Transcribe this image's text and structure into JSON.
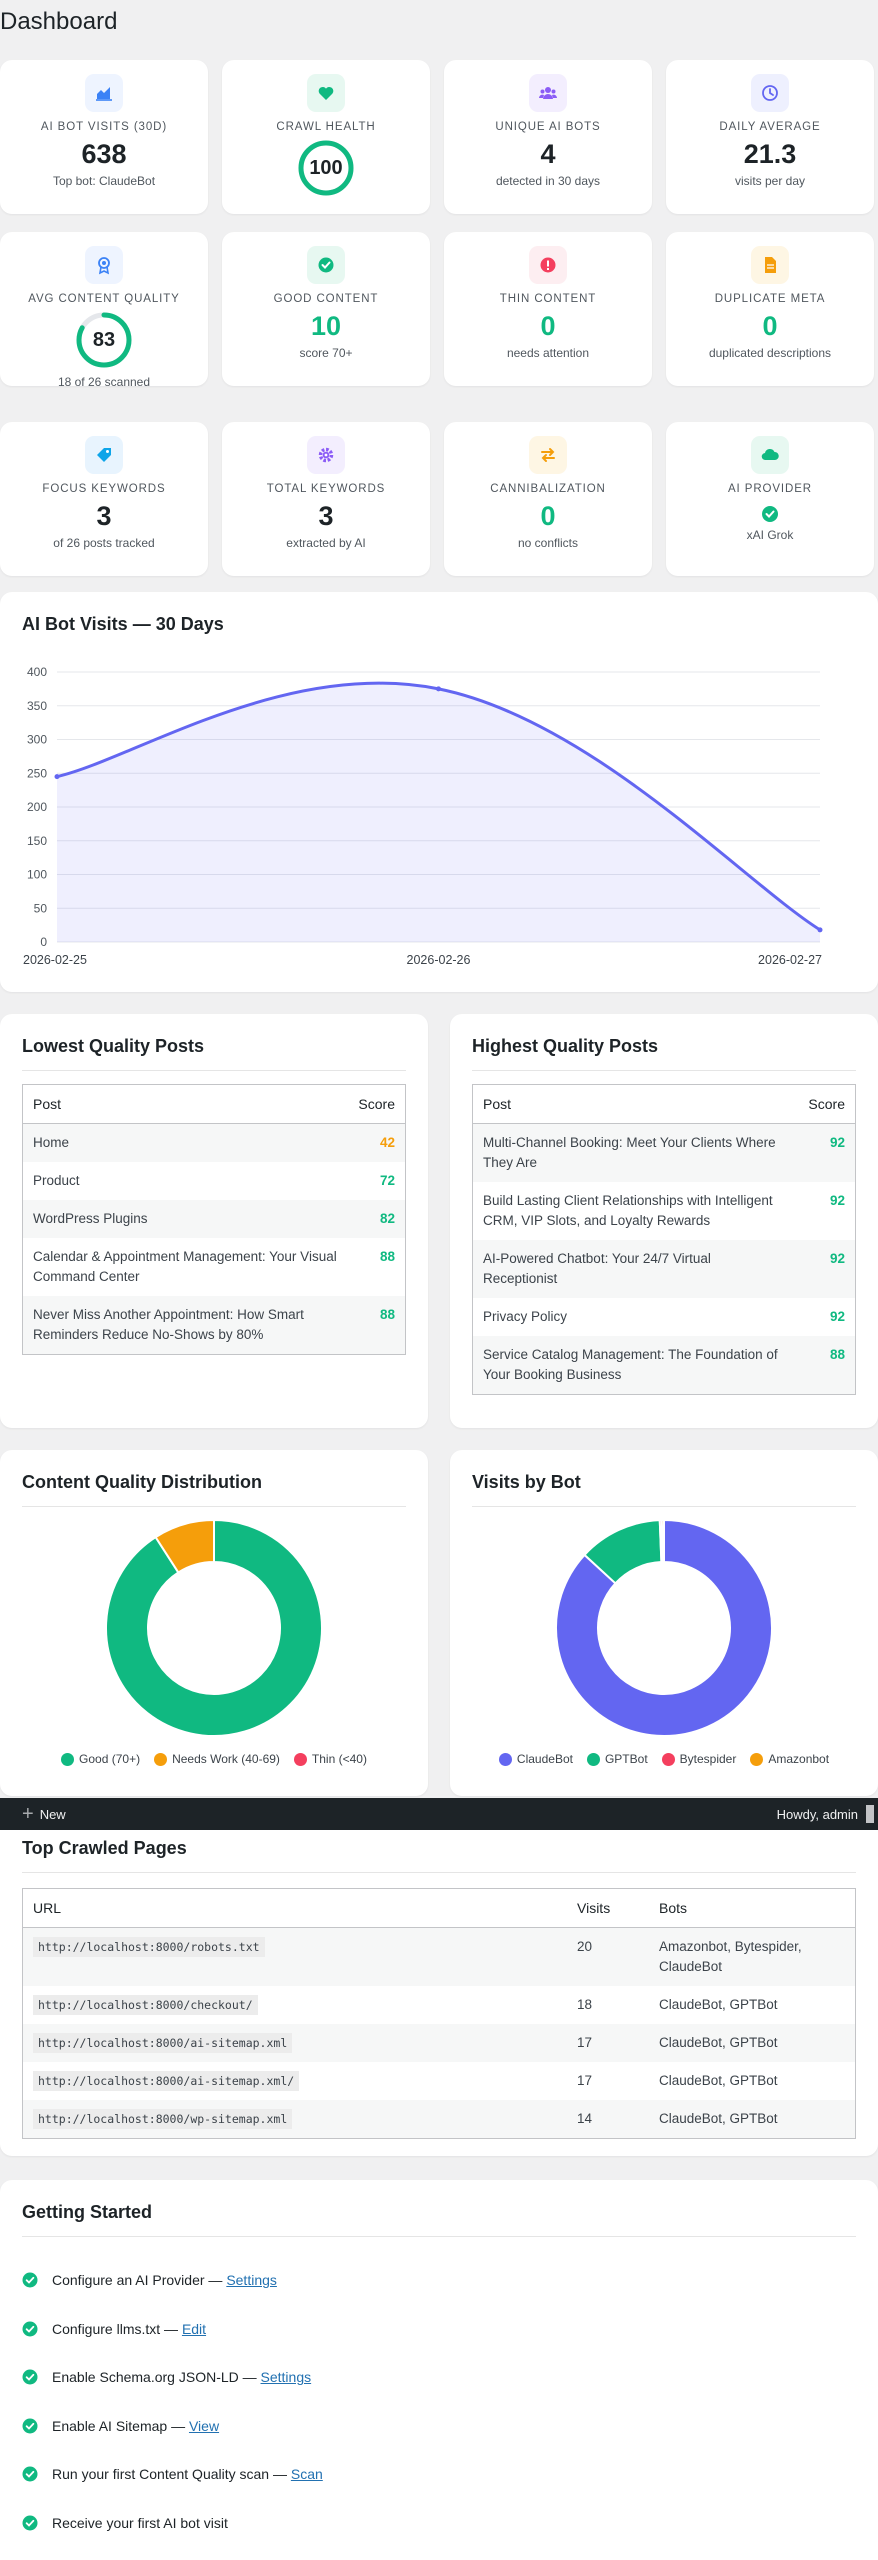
{
  "page": {
    "title": "Dashboard"
  },
  "colors": {
    "green": "#10b981",
    "purple": "#6366f1",
    "orange": "#f59e0b",
    "red": "#f43f5e",
    "admin_bar": "#1d2327"
  },
  "stats_row1": [
    {
      "icon": "chart-icon",
      "label": "AI Bot Visits (30d)",
      "value": "638",
      "sub": "Top bot: ClaudeBot"
    },
    {
      "icon": "heart-icon",
      "label": "Crawl Health",
      "value": "100",
      "ring_fraction": 1.0
    },
    {
      "icon": "users-icon",
      "label": "Unique AI Bots",
      "value": "4",
      "sub": "detected in 30 days"
    },
    {
      "icon": "clock-icon",
      "label": "Daily Average",
      "value": "21.3",
      "sub": "visits per day"
    }
  ],
  "stats_row2": [
    {
      "icon": "award-icon",
      "label": "Avg Content Quality",
      "value": "83",
      "ring_fraction": 0.83,
      "sub": "18 of 26 scanned"
    },
    {
      "icon": "check-circle-icon",
      "label": "Good Content",
      "value": "10",
      "sub": "score 70+"
    },
    {
      "icon": "alert-icon",
      "label": "Thin Content",
      "value": "0",
      "sub": "needs attention"
    },
    {
      "icon": "document-icon",
      "label": "Duplicate Meta",
      "value": "0",
      "sub": "duplicated descriptions"
    }
  ],
  "stats_row3": [
    {
      "icon": "tag-icon",
      "label": "Focus Keywords",
      "value": "3",
      "sub": "of 26 posts tracked"
    },
    {
      "icon": "gear-icon",
      "label": "Total Keywords",
      "value": "3",
      "sub": "extracted by AI"
    },
    {
      "icon": "swap-icon",
      "label": "Cannibalization",
      "value": "0",
      "sub": "no conflicts"
    },
    {
      "icon": "cloud-icon",
      "label": "AI Provider",
      "sub": "xAI Grok"
    }
  ],
  "visits_chart": {
    "title": "AI Bot Visits — 30 Days"
  },
  "chart_data": [
    {
      "type": "area",
      "title": "AI Bot Visits — 30 Days",
      "x": [
        "2026-02-25",
        "2026-02-26",
        "2026-02-27"
      ],
      "values": [
        245,
        375,
        18
      ],
      "ylim": [
        0,
        400
      ],
      "yticks": [
        0,
        50,
        100,
        150,
        200,
        250,
        300,
        350,
        400
      ],
      "grid": true,
      "color": "#6366f1"
    },
    {
      "type": "pie",
      "title": "Content Quality Distribution",
      "categories": [
        "Good (70+)",
        "Needs Work (40-69)",
        "Thin (<40)"
      ],
      "values": [
        10,
        1,
        0
      ],
      "colors": [
        "#10b981",
        "#f59e0b",
        "#f43f5e"
      ],
      "legend": "bottom"
    },
    {
      "type": "pie",
      "title": "Visits by Bot",
      "categories": [
        "ClaudeBot",
        "GPTBot",
        "Bytespider",
        "Amazonbot"
      ],
      "values": [
        554,
        80,
        2,
        2
      ],
      "colors": [
        "#6366f1",
        "#10b981",
        "#f43f5e",
        "#f59e0b"
      ],
      "legend": "bottom"
    }
  ],
  "lowest": {
    "title": "Lowest Quality Posts",
    "col_post": "Post",
    "col_score": "Score",
    "rows": [
      {
        "post": "Home",
        "score": "42",
        "tone": "orange"
      },
      {
        "post": "Product",
        "score": "72",
        "tone": "green"
      },
      {
        "post": "WordPress Plugins",
        "score": "82",
        "tone": "green"
      },
      {
        "post": "Calendar & Appointment Management: Your Visual Command Center",
        "score": "88",
        "tone": "green"
      },
      {
        "post": "Never Miss Another Appointment: How Smart Reminders Reduce No-Shows by 80%",
        "score": "88",
        "tone": "green"
      }
    ]
  },
  "highest": {
    "title": "Highest Quality Posts",
    "col_post": "Post",
    "col_score": "Score",
    "rows": [
      {
        "post": "Multi-Channel Booking: Meet Your Clients Where They Are",
        "score": "92",
        "tone": "green"
      },
      {
        "post": "Build Lasting Client Relationships with Intelligent CRM, VIP Slots, and Loyalty Rewards",
        "score": "92",
        "tone": "green"
      },
      {
        "post": "AI-Powered Chatbot: Your 24/7 Virtual Receptionist",
        "score": "92",
        "tone": "green"
      },
      {
        "post": "Privacy Policy",
        "score": "92",
        "tone": "green"
      },
      {
        "post": "Service Catalog Management: The Foundation of Your Booking Business",
        "score": "88",
        "tone": "green"
      }
    ]
  },
  "distribution": {
    "title": "Content Quality Distribution",
    "legend": [
      "Good (70+)",
      "Needs Work (40-69)",
      "Thin (<40)"
    ]
  },
  "bots": {
    "title": "Visits by Bot",
    "legend": [
      "ClaudeBot",
      "GPTBot",
      "Bytespider",
      "Amazonbot"
    ]
  },
  "admin_bar": {
    "new_label": "New",
    "howdy": "Howdy, admin"
  },
  "crawled": {
    "title": "Top Crawled Pages",
    "col_url": "URL",
    "col_visits": "Visits",
    "col_bots": "Bots",
    "rows": [
      {
        "url": "http://localhost:8000/robots.txt",
        "visits": "20",
        "bots": "Amazonbot, Bytespider, ClaudeBot"
      },
      {
        "url": "http://localhost:8000/checkout/",
        "visits": "18",
        "bots": "ClaudeBot, GPTBot"
      },
      {
        "url": "http://localhost:8000/ai-sitemap.xml",
        "visits": "17",
        "bots": "ClaudeBot, GPTBot"
      },
      {
        "url": "http://localhost:8000/ai-sitemap.xml/",
        "visits": "17",
        "bots": "ClaudeBot, GPTBot"
      },
      {
        "url": "http://localhost:8000/wp-sitemap.xml",
        "visits": "14",
        "bots": "ClaudeBot, GPTBot"
      }
    ]
  },
  "getting_started": {
    "title": "Getting Started",
    "items": [
      {
        "text": "Configure an AI Provider — ",
        "link": "Settings"
      },
      {
        "text": "Configure llms.txt — ",
        "link": "Edit"
      },
      {
        "text": "Enable Schema.org JSON-LD — ",
        "link": "Settings"
      },
      {
        "text": "Enable AI Sitemap — ",
        "link": "View"
      },
      {
        "text": "Run your first Content Quality scan — ",
        "link": "Scan"
      },
      {
        "text": "Receive your first AI bot visit",
        "link": ""
      }
    ]
  }
}
